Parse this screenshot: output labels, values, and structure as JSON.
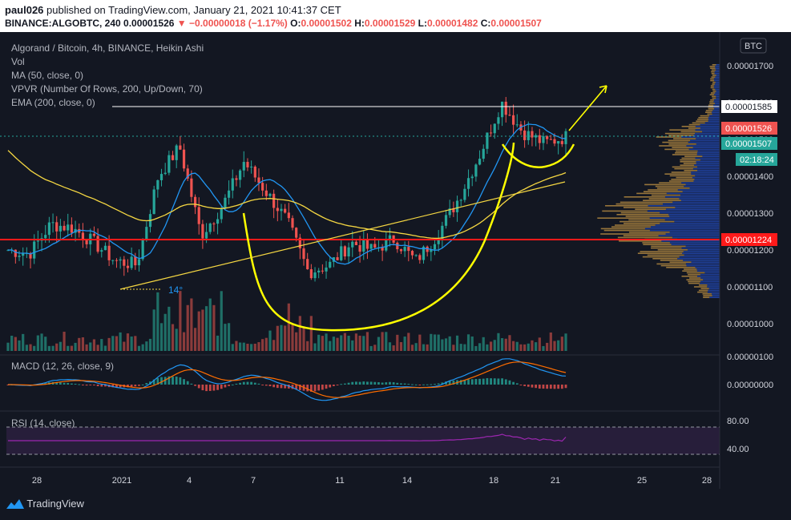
{
  "header": {
    "publisher": "paul026",
    "published_text": "published on TradingView.com, January 21, 2021 10:41:37 CET",
    "symbol_line": "BINANCE:ALGOBTC, 240",
    "last": "0.00001526",
    "change": "−0.00000018 (−1.17%)",
    "o_label": "O:",
    "o": "0.00001502",
    "h_label": "H:",
    "h": "0.00001529",
    "l_label": "L:",
    "l": "0.00001482",
    "c_label": "C:",
    "c": "0.00001507"
  },
  "legend": {
    "title": "Algorand / Bitcoin, 4h, BINANCE, Heikin Ashi",
    "vol": "Vol",
    "ma": "MA (50, close, 0)",
    "vpvr": "VPVR (Number Of Rows, 200, Up/Down, 70)",
    "ema": "EMA (200, close, 0)",
    "macd": "MACD (12, 26, close, 9)",
    "rsi": "RSI (14, close)"
  },
  "currency_button": "BTC",
  "annotation_angle": "14°",
  "price_labels": {
    "white_line": "0.00001585",
    "last_close": "0.00001526",
    "current": "0.00001507",
    "countdown": "02:18:24",
    "red_line": "0.00001224"
  },
  "footer": {
    "brand": "TradingView"
  },
  "colors": {
    "up": "#26a69a",
    "down": "#ef5350",
    "ma": "#2196f3",
    "ema": "#f5d742",
    "annotation": "#ffff00",
    "rsi": "#9c27b0",
    "vp_up": "#2962ff",
    "vp_down": "#f0b44c"
  },
  "chart_data": {
    "type": "candlestick",
    "title": "Algorand / Bitcoin, 4h, BINANCE, Heikin Ashi",
    "price_axis": {
      "ticks": [
        "0.00001700",
        "0.00001600",
        "0.00001500",
        "0.00001400",
        "0.00001300",
        "0.00001200",
        "0.00001100",
        "0.00001000"
      ],
      "ylim": [
        9.3e-06,
        1.76e-05
      ]
    },
    "x_ticks": [
      "28",
      "2021",
      "4",
      "7",
      "11",
      "14",
      "18",
      "21",
      "25",
      "28"
    ],
    "close_path": [
      [
        "Dec 26",
        1.2e-05
      ],
      [
        "Dec 27",
        1.19e-05
      ],
      [
        "Dec 28",
        1.27e-05
      ],
      [
        "Dec 29",
        1.26e-05
      ],
      [
        "Dec 30",
        1.22e-05
      ],
      [
        "Dec 31",
        1.17e-05
      ],
      [
        "Jan 1",
        1.16e-05
      ],
      [
        "Jan 2",
        1.4e-05
      ],
      [
        "Jan 3",
        1.48e-05
      ],
      [
        "Jan 4",
        1.24e-05
      ],
      [
        "Jan 5",
        1.32e-05
      ],
      [
        "Jan 6",
        1.44e-05
      ],
      [
        "Jan 7",
        1.36e-05
      ],
      [
        "Jan 8",
        1.28e-05
      ],
      [
        "Jan 9",
        1.14e-05
      ],
      [
        "Jan 10",
        1.16e-05
      ],
      [
        "Jan 11",
        1.22e-05
      ],
      [
        "Jan 12",
        1.2e-05
      ],
      [
        "Jan 13",
        1.23e-05
      ],
      [
        "Jan 14",
        1.17e-05
      ],
      [
        "Jan 15",
        1.24e-05
      ],
      [
        "Jan 16",
        1.34e-05
      ],
      [
        "Jan 17",
        1.46e-05
      ],
      [
        "Jan 18",
        1.6e-05
      ],
      [
        "Jan 19",
        1.52e-05
      ],
      [
        "Jan 20",
        1.49e-05
      ],
      [
        "Jan 21",
        1.507e-05
      ]
    ],
    "horizontal_lines": [
      {
        "label": "white line",
        "value": 1.585e-05
      },
      {
        "label": "red support line",
        "value": 1.224e-05
      },
      {
        "label": "current price",
        "value": 1.507e-05
      }
    ],
    "macd_axis": {
      "ticks": [
        "0.00000100",
        "0.00000000"
      ]
    },
    "rsi_axis": {
      "ticks": [
        "80.00",
        "40.00"
      ],
      "bands": [
        70,
        30
      ]
    }
  }
}
